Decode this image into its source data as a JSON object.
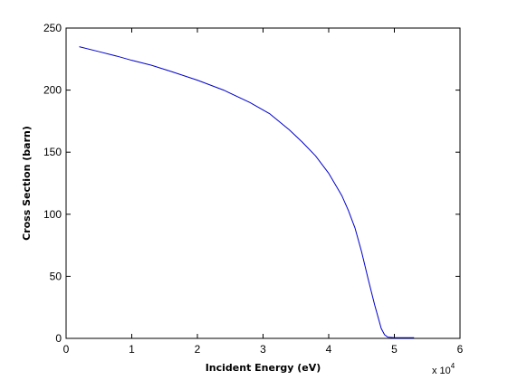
{
  "chart_data": {
    "type": "line",
    "title": "",
    "xlabel": "Incident Energy (eV)",
    "ylabel": "Cross Section (barn)",
    "x_multiplier": {
      "base": "x 10",
      "exponent": "4"
    },
    "xlim": [
      0,
      60000
    ],
    "ylim": [
      0,
      250
    ],
    "xticks": [
      0,
      10000,
      20000,
      30000,
      40000,
      50000,
      60000
    ],
    "xtick_labels": [
      "0",
      "1",
      "2",
      "3",
      "4",
      "5",
      "6"
    ],
    "yticks": [
      0,
      50,
      100,
      150,
      200,
      250
    ],
    "ytick_labels": [
      "0",
      "50",
      "100",
      "150",
      "200",
      "250"
    ],
    "grid": false,
    "line_color": "#0000cc",
    "series": [
      {
        "x": [
          2000,
          5000,
          8000,
          10000,
          13000,
          16000,
          20000,
          24000,
          28000,
          31000,
          34000,
          36000,
          38000,
          40000,
          42000,
          43000,
          44000,
          45000,
          46000,
          47000,
          48000,
          48500,
          49000,
          50000,
          51000,
          52000,
          53000
        ],
        "y": [
          235,
          231,
          227,
          224,
          220,
          215,
          208,
          200,
          190,
          181,
          168,
          158,
          147,
          133,
          115,
          103,
          89,
          70,
          48,
          27,
          8,
          3,
          1,
          0.5,
          0.5,
          0.5,
          0.5
        ]
      }
    ]
  }
}
